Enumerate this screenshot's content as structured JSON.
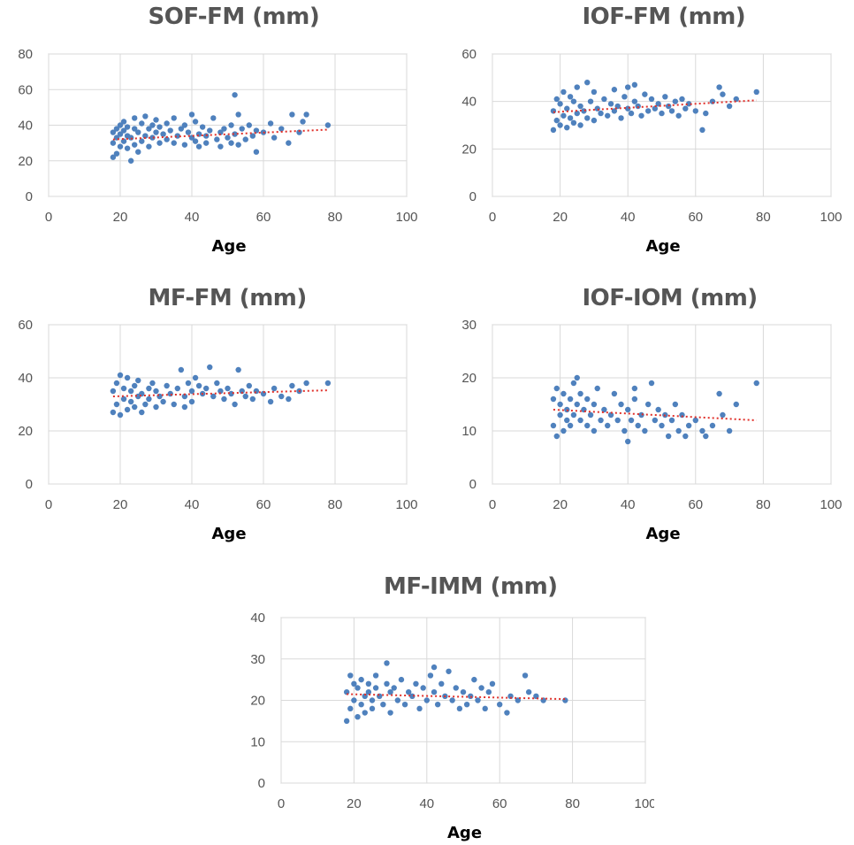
{
  "chart_data": [
    {
      "type": "scatter",
      "title": "SOF-FM (mm)",
      "xlabel": "Age",
      "xlim": [
        0,
        100
      ],
      "ylim": [
        0,
        80
      ],
      "xticks": [
        0,
        20,
        40,
        60,
        80,
        100
      ],
      "yticks": [
        0,
        20,
        40,
        60,
        80
      ],
      "grid": true,
      "marker_color": "#4f81bd",
      "trendline": {
        "style": "dotted",
        "color": "#e0302a",
        "points": [
          [
            18,
            32
          ],
          [
            78,
            37.5
          ]
        ]
      },
      "series": [
        {
          "x": [
            18,
            18,
            18,
            19,
            19,
            19,
            20,
            20,
            20,
            21,
            21,
            21,
            22,
            22,
            22,
            23,
            23,
            24,
            24,
            24,
            25,
            25,
            26,
            26,
            27,
            27,
            28,
            28,
            29,
            29,
            30,
            30,
            31,
            31,
            32,
            33,
            33,
            34,
            35,
            35,
            36,
            37,
            38,
            38,
            39,
            40,
            40,
            41,
            41,
            42,
            42,
            43,
            44,
            44,
            45,
            46,
            47,
            48,
            48,
            49,
            50,
            51,
            51,
            52,
            52,
            53,
            53,
            54,
            55,
            56,
            57,
            58,
            58,
            60,
            62,
            63,
            65,
            67,
            68,
            70,
            71,
            72,
            78
          ],
          "y": [
            22,
            30,
            36,
            24,
            33,
            38,
            28,
            35,
            40,
            31,
            37,
            42,
            27,
            34,
            39,
            20,
            33,
            29,
            38,
            44,
            25,
            36,
            31,
            41,
            34,
            45,
            28,
            38,
            33,
            40,
            36,
            43,
            30,
            39,
            35,
            32,
            41,
            37,
            30,
            44,
            34,
            38,
            40,
            29,
            36,
            33,
            46,
            31,
            42,
            35,
            28,
            39,
            34,
            30,
            37,
            44,
            32,
            36,
            28,
            38,
            33,
            30,
            40,
            57,
            35,
            29,
            46,
            38,
            32,
            40,
            34,
            37,
            25,
            36,
            41,
            33,
            38,
            30,
            46,
            36,
            42,
            46,
            40
          ]
        }
      ]
    },
    {
      "type": "scatter",
      "title": "IOF-FM (mm)",
      "xlabel": "Age",
      "xlim": [
        0,
        100
      ],
      "ylim": [
        0,
        60
      ],
      "xticks": [
        0,
        20,
        40,
        60,
        80,
        100
      ],
      "yticks": [
        0,
        20,
        40,
        60
      ],
      "grid": true,
      "marker_color": "#4f81bd",
      "trendline": {
        "style": "dotted",
        "color": "#e0302a",
        "points": [
          [
            18,
            35.5
          ],
          [
            78,
            40.5
          ]
        ]
      },
      "series": [
        {
          "x": [
            18,
            18,
            19,
            19,
            20,
            20,
            21,
            21,
            22,
            22,
            23,
            23,
            24,
            24,
            25,
            25,
            26,
            26,
            27,
            28,
            28,
            29,
            30,
            30,
            31,
            32,
            33,
            34,
            35,
            36,
            36,
            37,
            38,
            39,
            40,
            40,
            41,
            42,
            42,
            43,
            44,
            45,
            46,
            47,
            48,
            49,
            50,
            51,
            52,
            53,
            54,
            55,
            56,
            57,
            58,
            60,
            62,
            63,
            65,
            67,
            68,
            70,
            72,
            78
          ],
          "y": [
            28,
            36,
            32,
            41,
            30,
            39,
            34,
            44,
            29,
            37,
            33,
            42,
            31,
            40,
            35,
            46,
            30,
            38,
            36,
            48,
            33,
            40,
            32,
            44,
            37,
            35,
            41,
            34,
            39,
            36,
            45,
            38,
            33,
            42,
            37,
            46,
            35,
            40,
            47,
            38,
            34,
            43,
            36,
            41,
            37,
            39,
            35,
            42,
            38,
            36,
            40,
            34,
            41,
            37,
            39,
            36,
            28,
            35,
            40,
            46,
            43,
            38,
            41,
            44
          ]
        }
      ]
    },
    {
      "type": "scatter",
      "title": "MF-FM (mm)",
      "xlabel": "Age",
      "xlim": [
        0,
        100
      ],
      "ylim": [
        0,
        60
      ],
      "xticks": [
        0,
        20,
        40,
        60,
        80,
        100
      ],
      "yticks": [
        0,
        20,
        40,
        60
      ],
      "grid": true,
      "marker_color": "#4f81bd",
      "trendline": {
        "style": "dotted",
        "color": "#e0302a",
        "points": [
          [
            18,
            33
          ],
          [
            78,
            35.3
          ]
        ]
      },
      "series": [
        {
          "x": [
            18,
            18,
            19,
            19,
            20,
            20,
            21,
            21,
            22,
            22,
            23,
            23,
            24,
            24,
            25,
            25,
            26,
            26,
            27,
            28,
            28,
            29,
            30,
            30,
            31,
            32,
            33,
            34,
            35,
            36,
            37,
            38,
            38,
            39,
            40,
            40,
            41,
            42,
            43,
            44,
            45,
            46,
            47,
            48,
            49,
            50,
            51,
            52,
            53,
            54,
            55,
            56,
            57,
            58,
            60,
            62,
            63,
            65,
            67,
            68,
            70,
            72,
            78
          ],
          "y": [
            27,
            35,
            30,
            38,
            26,
            41,
            32,
            36,
            28,
            40,
            31,
            35,
            29,
            37,
            33,
            39,
            27,
            34,
            30,
            36,
            32,
            38,
            29,
            35,
            33,
            31,
            37,
            34,
            30,
            36,
            43,
            33,
            29,
            38,
            35,
            31,
            40,
            37,
            34,
            36,
            44,
            33,
            38,
            35,
            32,
            36,
            34,
            30,
            43,
            35,
            33,
            37,
            32,
            35,
            34,
            31,
            36,
            33,
            32,
            37,
            35,
            38,
            38
          ]
        }
      ]
    },
    {
      "type": "scatter",
      "title": "IOF-IOM (mm)",
      "xlabel": "Age",
      "xlim": [
        0,
        100
      ],
      "ylim": [
        0,
        30
      ],
      "xticks": [
        0,
        20,
        40,
        60,
        80,
        100
      ],
      "yticks": [
        0,
        10,
        20,
        30
      ],
      "grid": true,
      "marker_color": "#4f81bd",
      "trendline": {
        "style": "dotted",
        "color": "#e0302a",
        "points": [
          [
            18,
            14
          ],
          [
            78,
            12
          ]
        ]
      },
      "series": [
        {
          "x": [
            18,
            18,
            19,
            19,
            20,
            20,
            21,
            21,
            22,
            22,
            23,
            23,
            24,
            24,
            25,
            25,
            26,
            26,
            27,
            28,
            28,
            29,
            30,
            30,
            31,
            32,
            33,
            34,
            35,
            36,
            37,
            38,
            39,
            40,
            40,
            41,
            42,
            42,
            43,
            44,
            45,
            46,
            47,
            48,
            49,
            50,
            51,
            52,
            53,
            54,
            55,
            56,
            57,
            58,
            60,
            62,
            63,
            65,
            67,
            68,
            70,
            72,
            78
          ],
          "y": [
            11,
            16,
            9,
            18,
            13,
            15,
            10,
            17,
            12,
            14,
            16,
            11,
            19,
            13,
            15,
            20,
            12,
            17,
            14,
            11,
            16,
            13,
            15,
            10,
            18,
            12,
            14,
            11,
            13,
            17,
            12,
            15,
            10,
            8,
            14,
            12,
            18,
            16,
            11,
            13,
            10,
            15,
            19,
            12,
            14,
            11,
            13,
            9,
            12,
            15,
            10,
            13,
            9,
            11,
            12,
            10,
            9,
            11,
            17,
            13,
            10,
            15,
            19
          ]
        }
      ]
    },
    {
      "type": "scatter",
      "title": "MF-IMM (mm)",
      "xlabel": "Age",
      "xlim": [
        0,
        100
      ],
      "ylim": [
        0,
        40
      ],
      "xticks": [
        0,
        20,
        40,
        60,
        80,
        100
      ],
      "yticks": [
        0,
        10,
        20,
        30,
        40
      ],
      "grid": true,
      "marker_color": "#4f81bd",
      "trendline": {
        "style": "dotted",
        "color": "#e0302a",
        "points": [
          [
            18,
            21.5
          ],
          [
            78,
            20.3
          ]
        ]
      },
      "series": [
        {
          "x": [
            18,
            18,
            19,
            19,
            20,
            20,
            21,
            21,
            22,
            22,
            23,
            23,
            24,
            24,
            25,
            25,
            26,
            26,
            27,
            28,
            29,
            29,
            30,
            30,
            31,
            32,
            33,
            34,
            35,
            36,
            37,
            38,
            39,
            40,
            41,
            42,
            42,
            43,
            44,
            45,
            46,
            47,
            48,
            49,
            50,
            51,
            52,
            53,
            54,
            55,
            56,
            57,
            58,
            60,
            62,
            63,
            65,
            67,
            68,
            70,
            72,
            78
          ],
          "y": [
            15,
            22,
            18,
            26,
            20,
            24,
            16,
            23,
            19,
            25,
            21,
            17,
            22,
            24,
            20,
            18,
            23,
            26,
            21,
            19,
            29,
            24,
            22,
            17,
            23,
            20,
            25,
            19,
            22,
            21,
            24,
            18,
            23,
            20,
            26,
            22,
            28,
            19,
            24,
            21,
            27,
            20,
            23,
            18,
            22,
            19,
            21,
            25,
            20,
            23,
            18,
            22,
            24,
            19,
            17,
            21,
            20,
            26,
            22,
            21,
            20,
            20
          ]
        }
      ]
    }
  ]
}
